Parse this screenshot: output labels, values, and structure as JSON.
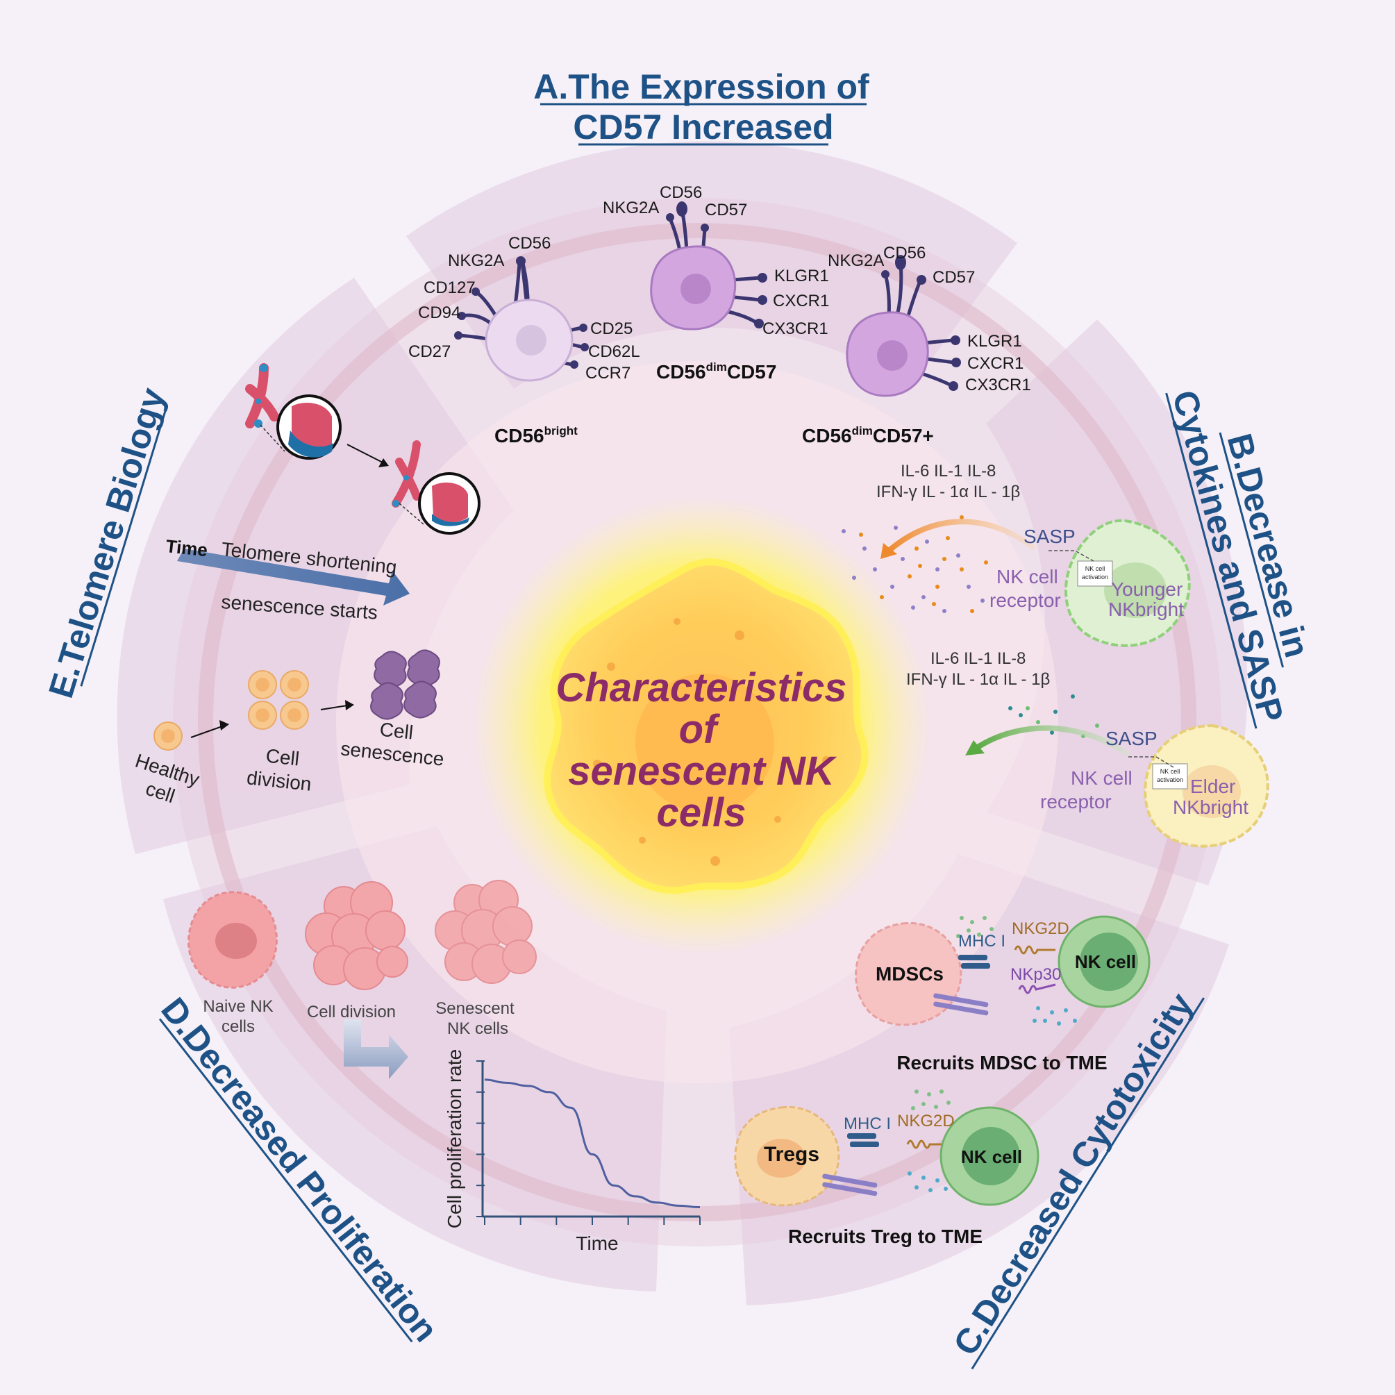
{
  "center_title": [
    "Characteristics",
    "of",
    "senescent NK",
    "cells"
  ],
  "section_a": {
    "title_line1": "A.The Expression of",
    "title_line2": "CD57 Increased",
    "cell1": {
      "markers_top": [
        "NKG2A",
        "CD56",
        "CD127",
        "CD94",
        "CD27"
      ],
      "markers_right": [
        "CD25",
        "CD62L",
        "CCR7"
      ],
      "name_main": "CD56",
      "name_sup": "bright",
      "name_suffix": ""
    },
    "cell2": {
      "markers_top": [
        "NKG2A",
        "CD56",
        "CD57"
      ],
      "markers_right": [
        "KLGR1",
        "CXCR1",
        "CX3CR1"
      ],
      "name_main": "CD56",
      "name_sup": "dim",
      "name_suffix": "CD57"
    },
    "cell3": {
      "markers_top": [
        "NKG2A",
        "CD56",
        "CD57"
      ],
      "markers_right": [
        "KLGR1",
        "CXCR1",
        "CX3CR1"
      ],
      "name_main": "CD56",
      "name_sup": "dim",
      "name_suffix": "CD57+"
    }
  },
  "section_b": {
    "title_line1": "B.Decrease in",
    "title_line2": "Cytokines and SASP",
    "young": {
      "cytokines_line1": "IL-6  IL-1  IL-8",
      "cytokines_line2": "IFN-γ  IL - 1α IL - 1β",
      "sasp": "SASP",
      "receptor_line1": "NK cell",
      "receptor_line2": "receptor",
      "activation_line1": "NK cell",
      "activation_line2": "activation",
      "cell_line1": "Younger",
      "cell_line2": "NKbright"
    },
    "elder": {
      "cytokines_line1": "IL-6  IL-1  IL-8",
      "cytokines_line2": "IFN-γ  IL - 1α IL - 1β",
      "sasp": "SASP",
      "receptor_line1": "NK cell",
      "receptor_line2": "receptor",
      "activation_line1": "NK cell",
      "activation_line2": "activation",
      "cell_line1": "Elder",
      "cell_line2": "NKbright"
    }
  },
  "section_c": {
    "title": "C.Decreased Cytotoxicity",
    "mdsc": {
      "mhc": "MHC I",
      "nkg2d": "NKG2D",
      "nkp30": "NKp30",
      "suppressor": "MDSCs",
      "nk": "NK cell",
      "caption": "Recruits MDSC to TME"
    },
    "treg": {
      "mhc": "MHC I",
      "nkg2d": "NKG2D",
      "suppressor": "Tregs",
      "nk": "NK cell",
      "caption": "Recruits Treg to TME"
    }
  },
  "section_d": {
    "title": "D.Decreased Proliferation",
    "naive_line1": "Naive NK",
    "naive_line2": "cells",
    "division": "Cell division",
    "senescent_line1": "Senescent",
    "senescent_line2": "NK cells",
    "chart_ylabel": "Cell proliferation rate",
    "chart_xlabel": "Time"
  },
  "section_e": {
    "title": "E.Telomere Biology",
    "time": "Time",
    "shortening": "Telomere shortening",
    "senescence_starts": "senescence starts",
    "healthy_line1": "Healthy",
    "healthy_line2": "cell",
    "division_line1": "Cell",
    "division_line2": "division",
    "senescence_line1": "Cell",
    "senescence_line2": "senescence"
  },
  "chart_data": {
    "type": "line",
    "title": "",
    "xlabel": "Time",
    "ylabel": "Cell proliferation rate",
    "x": [
      0,
      1,
      2,
      3,
      4,
      5,
      6,
      7,
      8,
      9,
      10
    ],
    "y": [
      0.88,
      0.86,
      0.84,
      0.8,
      0.7,
      0.4,
      0.2,
      0.13,
      0.09,
      0.07,
      0.06
    ],
    "xlim": [
      0,
      10
    ],
    "ylim": [
      0,
      1
    ]
  },
  "colors": {
    "title_blue": "#1e5286",
    "center_text": "#8b2b68",
    "cell_purple": "#c79bdc",
    "nk_green": "#a8d4a0",
    "arrow_orange": "#ee8a2e",
    "arrow_green": "#5aaa44"
  }
}
